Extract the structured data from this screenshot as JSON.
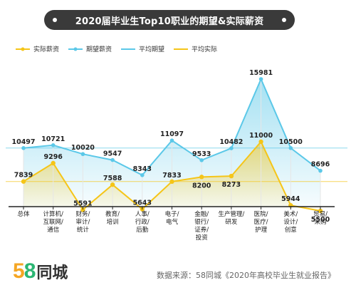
{
  "title": "2020届毕业生Top10职业的期望&实际薪资",
  "colors": {
    "actual": "#f5c518",
    "expected": "#5bc8e8",
    "title_bg": "#3a3a3a",
    "logo_5": "#f5a623",
    "logo_8": "#2bb673"
  },
  "chart_data": {
    "type": "line",
    "categories": [
      "总体",
      "计算机/互联网/通信",
      "财务/审计/统计",
      "教育/培训",
      "人事/行政/后勤",
      "电子/电气",
      "金融/银行/证券/投资",
      "生产管理/研发",
      "医院/医疗/护理",
      "美术/设计/创意",
      "贸易/采购"
    ],
    "category_lines": [
      [
        "总体"
      ],
      [
        "计算机/",
        "互联网/",
        "通信"
      ],
      [
        "财务/",
        "审计/",
        "统计"
      ],
      [
        "教育/",
        "培训"
      ],
      [
        "人事/",
        "行政/",
        "后勤"
      ],
      [
        "电子/",
        "电气"
      ],
      [
        "金融/",
        "银行/",
        "证券/",
        "投资"
      ],
      [
        "生产管理/",
        "研发"
      ],
      [
        "医院/",
        "医疗/",
        "护理"
      ],
      [
        "美术/",
        "设计/",
        "创意"
      ],
      [
        "贸易/",
        "采购"
      ]
    ],
    "series": [
      {
        "name": "实际薪资",
        "values": [
          7839,
          9296,
          5591,
          7588,
          5643,
          7833,
          8200,
          8273,
          11000,
          5944,
          5500
        ]
      },
      {
        "name": "期望薪资",
        "values": [
          10497,
          10721,
          10020,
          9547,
          8343,
          11097,
          9533,
          10482,
          15981,
          10500,
          8696
        ]
      }
    ],
    "reference_lines": [
      {
        "name": "平均期望",
        "value": 10497
      },
      {
        "name": "平均实际",
        "value": 7839
      }
    ],
    "legend": [
      "实际薪资",
      "期望薪资",
      "平均期望",
      "平均实际"
    ],
    "legend_position": "top-left",
    "ylim": [
      4000,
      17000
    ]
  },
  "footer": {
    "logo_5": "5",
    "logo_8": "8",
    "logo_text": "同城",
    "source": "数据来源：58同城《2020年高校毕业生就业报告》"
  }
}
